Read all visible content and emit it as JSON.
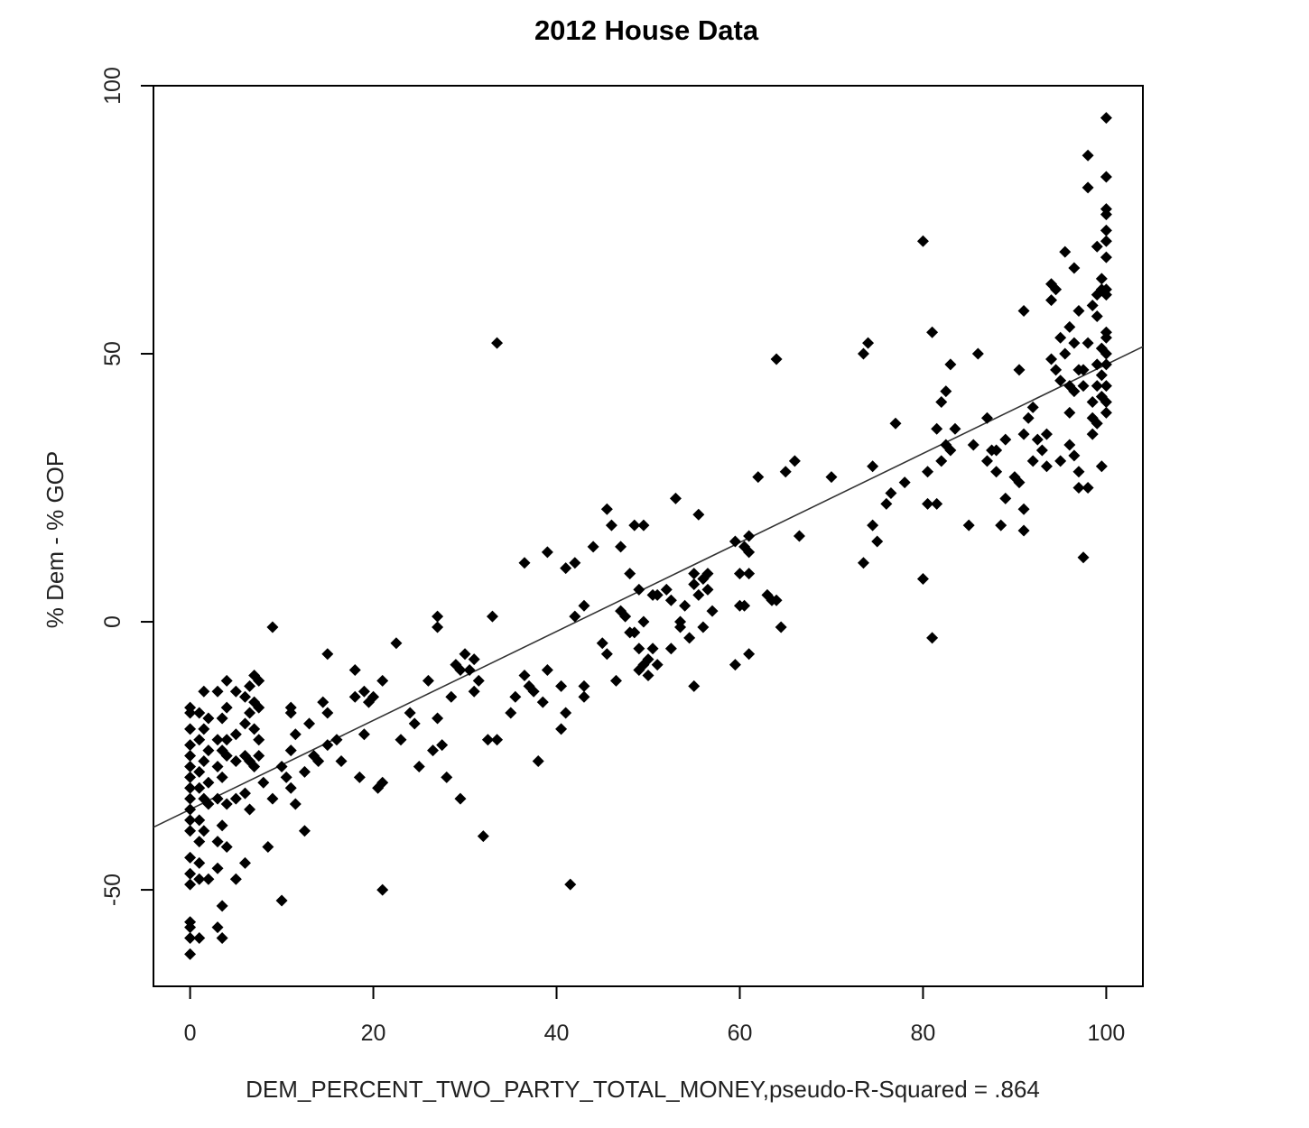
{
  "chart_data": {
    "type": "scatter",
    "title": "2012 House Data",
    "xlabel": "DEM_PERCENT_TWO_PARTY_TOTAL_MONEY,pseudo-R-Squared = .864",
    "ylabel": "% Dem - % GOP",
    "xlim": [
      -4,
      104
    ],
    "ylim": [
      -68,
      100
    ],
    "x_ticks": [
      0,
      20,
      40,
      60,
      80,
      100
    ],
    "x_tick_labels": [
      "0",
      "20",
      "40",
      "60",
      "80",
      "100"
    ],
    "y_ticks": [
      -50,
      0,
      50,
      100
    ],
    "y_tick_labels": [
      "-50",
      "0",
      "50",
      "100"
    ],
    "grid": false,
    "marker": "filled-diamond",
    "point_color": "#000000",
    "fit_line": {
      "intercept": -35,
      "slope": 0.83
    },
    "points": [
      [
        0,
        -16
      ],
      [
        0,
        -17
      ],
      [
        0,
        -20
      ],
      [
        0,
        -23
      ],
      [
        0,
        -25
      ],
      [
        0,
        -27
      ],
      [
        0,
        -29
      ],
      [
        0,
        -31
      ],
      [
        0,
        -33
      ],
      [
        0,
        -35
      ],
      [
        0,
        -37
      ],
      [
        0,
        -39
      ],
      [
        0,
        -44
      ],
      [
        0,
        -47
      ],
      [
        0,
        -49
      ],
      [
        0,
        -56
      ],
      [
        0,
        -57
      ],
      [
        0,
        -59
      ],
      [
        0,
        -62
      ],
      [
        1,
        -17
      ],
      [
        1,
        -22
      ],
      [
        1,
        -28
      ],
      [
        1,
        -31
      ],
      [
        1,
        -37
      ],
      [
        1,
        -41
      ],
      [
        1,
        -45
      ],
      [
        1,
        -48
      ],
      [
        1,
        -59
      ],
      [
        1.5,
        -13
      ],
      [
        1.5,
        -20
      ],
      [
        1.5,
        -26
      ],
      [
        1.5,
        -33
      ],
      [
        1.5,
        -39
      ],
      [
        2,
        -18
      ],
      [
        2,
        -24
      ],
      [
        2,
        -30
      ],
      [
        2,
        -34
      ],
      [
        2,
        -48
      ],
      [
        3,
        -13
      ],
      [
        3,
        -22
      ],
      [
        3,
        -27
      ],
      [
        3,
        -33
      ],
      [
        3,
        -41
      ],
      [
        3,
        -46
      ],
      [
        3,
        -57
      ],
      [
        3.5,
        -18
      ],
      [
        3.5,
        -24
      ],
      [
        3.5,
        -29
      ],
      [
        3.5,
        -38
      ],
      [
        3.5,
        -53
      ],
      [
        3.5,
        -59
      ],
      [
        4,
        -11
      ],
      [
        4,
        -16
      ],
      [
        4,
        -22
      ],
      [
        4,
        -25
      ],
      [
        4,
        -34
      ],
      [
        4,
        -42
      ],
      [
        5,
        -13
      ],
      [
        5,
        -21
      ],
      [
        5,
        -26
      ],
      [
        5,
        -33
      ],
      [
        5,
        -48
      ],
      [
        6,
        -14
      ],
      [
        6,
        -19
      ],
      [
        6,
        -25
      ],
      [
        6,
        -32
      ],
      [
        6,
        -45
      ],
      [
        6.5,
        -12
      ],
      [
        6.5,
        -17
      ],
      [
        6.5,
        -26
      ],
      [
        6.5,
        -35
      ],
      [
        7,
        -10
      ],
      [
        7,
        -15
      ],
      [
        7,
        -20
      ],
      [
        7,
        -27
      ],
      [
        7.5,
        -11
      ],
      [
        7.5,
        -16
      ],
      [
        7.5,
        -22
      ],
      [
        7.5,
        -25
      ],
      [
        8,
        -30
      ],
      [
        8.5,
        -42
      ],
      [
        9,
        -33
      ],
      [
        9,
        -1
      ],
      [
        10,
        -27
      ],
      [
        10,
        -52
      ],
      [
        10.5,
        -29
      ],
      [
        11,
        -16
      ],
      [
        11,
        -17
      ],
      [
        11,
        -24
      ],
      [
        11,
        -31
      ],
      [
        11.5,
        -21
      ],
      [
        11.5,
        -34
      ],
      [
        12.5,
        -28
      ],
      [
        12.5,
        -39
      ],
      [
        13,
        -19
      ],
      [
        13.5,
        -25
      ],
      [
        14,
        -26
      ],
      [
        14.5,
        -15
      ],
      [
        15,
        -6
      ],
      [
        15,
        -17
      ],
      [
        15,
        -23
      ],
      [
        16,
        -22
      ],
      [
        16.5,
        -26
      ],
      [
        18,
        -9
      ],
      [
        18,
        -14
      ],
      [
        18.5,
        -29
      ],
      [
        19,
        -13
      ],
      [
        19,
        -21
      ],
      [
        19.5,
        -15
      ],
      [
        20,
        -14
      ],
      [
        20.5,
        -31
      ],
      [
        21,
        -11
      ],
      [
        21,
        -30
      ],
      [
        21,
        -50
      ],
      [
        22.5,
        -4
      ],
      [
        23,
        -22
      ],
      [
        24,
        -17
      ],
      [
        24.5,
        -19
      ],
      [
        25,
        -27
      ],
      [
        26,
        -11
      ],
      [
        26.5,
        -24
      ],
      [
        27,
        -18
      ],
      [
        27,
        -1
      ],
      [
        27,
        1
      ],
      [
        27.5,
        -23
      ],
      [
        28,
        -29
      ],
      [
        28.5,
        -14
      ],
      [
        29,
        -8
      ],
      [
        29.5,
        -9
      ],
      [
        29.5,
        -33
      ],
      [
        30,
        -6
      ],
      [
        30.5,
        -9
      ],
      [
        31,
        -7
      ],
      [
        31,
        -13
      ],
      [
        31.5,
        -11
      ],
      [
        32,
        -40
      ],
      [
        32.5,
        -22
      ],
      [
        33,
        1
      ],
      [
        33.5,
        52
      ],
      [
        33.5,
        -22
      ],
      [
        35,
        -17
      ],
      [
        35.5,
        -14
      ],
      [
        36.5,
        -10
      ],
      [
        36.5,
        11
      ],
      [
        37,
        -12
      ],
      [
        37.5,
        -13
      ],
      [
        38,
        -26
      ],
      [
        38.5,
        -15
      ],
      [
        39,
        13
      ],
      [
        39,
        -9
      ],
      [
        40.5,
        -12
      ],
      [
        40.5,
        -20
      ],
      [
        41,
        -17
      ],
      [
        41,
        10
      ],
      [
        41.5,
        -49
      ],
      [
        42,
        11
      ],
      [
        42,
        1
      ],
      [
        43,
        -14
      ],
      [
        43,
        -12
      ],
      [
        43,
        3
      ],
      [
        44,
        14
      ],
      [
        45,
        -4
      ],
      [
        45.5,
        -6
      ],
      [
        45.5,
        21
      ],
      [
        46,
        18
      ],
      [
        46.5,
        -11
      ],
      [
        47,
        2
      ],
      [
        47,
        14
      ],
      [
        47.5,
        1
      ],
      [
        48,
        9
      ],
      [
        48,
        -2
      ],
      [
        48.5,
        18
      ],
      [
        48.5,
        -2
      ],
      [
        49,
        -5
      ],
      [
        49,
        6
      ],
      [
        49,
        -9
      ],
      [
        49.5,
        18
      ],
      [
        49.5,
        -8
      ],
      [
        49.5,
        0
      ],
      [
        50,
        -7
      ],
      [
        50,
        -10
      ],
      [
        50.5,
        -5
      ],
      [
        50.5,
        5
      ],
      [
        51,
        -8
      ],
      [
        51,
        5
      ],
      [
        52,
        6
      ],
      [
        52.5,
        4
      ],
      [
        52.5,
        -5
      ],
      [
        53,
        23
      ],
      [
        53.5,
        -1
      ],
      [
        53.5,
        0
      ],
      [
        54,
        3
      ],
      [
        54.5,
        -3
      ],
      [
        55,
        7
      ],
      [
        55,
        9
      ],
      [
        55,
        -12
      ],
      [
        55.5,
        5
      ],
      [
        55.5,
        20
      ],
      [
        56,
        8
      ],
      [
        56,
        -1
      ],
      [
        56.5,
        9
      ],
      [
        56.5,
        6
      ],
      [
        57,
        2
      ],
      [
        59.5,
        15
      ],
      [
        59.5,
        -8
      ],
      [
        60,
        3
      ],
      [
        60,
        9
      ],
      [
        60.5,
        14
      ],
      [
        60.5,
        3
      ],
      [
        61,
        16
      ],
      [
        61,
        9
      ],
      [
        61,
        -6
      ],
      [
        61,
        13
      ],
      [
        62,
        27
      ],
      [
        63,
        5
      ],
      [
        63.5,
        4
      ],
      [
        64,
        49
      ],
      [
        64,
        4
      ],
      [
        64.5,
        -1
      ],
      [
        65,
        28
      ],
      [
        66,
        30
      ],
      [
        66.5,
        16
      ],
      [
        70,
        27
      ],
      [
        73.5,
        50
      ],
      [
        73.5,
        11
      ],
      [
        74,
        52
      ],
      [
        74.5,
        29
      ],
      [
        74.5,
        18
      ],
      [
        75,
        15
      ],
      [
        76,
        22
      ],
      [
        76.5,
        24
      ],
      [
        77,
        37
      ],
      [
        78,
        26
      ],
      [
        80,
        71
      ],
      [
        80,
        8
      ],
      [
        80.5,
        22
      ],
      [
        80.5,
        28
      ],
      [
        81,
        54
      ],
      [
        81,
        -3
      ],
      [
        81.5,
        36
      ],
      [
        81.5,
        22
      ],
      [
        82,
        41
      ],
      [
        82,
        30
      ],
      [
        82.5,
        43
      ],
      [
        82.5,
        33
      ],
      [
        83,
        48
      ],
      [
        83,
        32
      ],
      [
        83.5,
        36
      ],
      [
        85,
        18
      ],
      [
        85.5,
        33
      ],
      [
        86,
        50
      ],
      [
        87,
        38
      ],
      [
        87,
        30
      ],
      [
        87.5,
        32
      ],
      [
        88,
        32
      ],
      [
        88,
        28
      ],
      [
        88.5,
        18
      ],
      [
        89,
        23
      ],
      [
        89,
        34
      ],
      [
        90,
        27
      ],
      [
        90.5,
        47
      ],
      [
        90.5,
        26
      ],
      [
        91,
        58
      ],
      [
        91,
        35
      ],
      [
        91,
        21
      ],
      [
        91,
        17
      ],
      [
        91.5,
        38
      ],
      [
        92,
        30
      ],
      [
        92,
        40
      ],
      [
        92.5,
        34
      ],
      [
        93,
        32
      ],
      [
        93.5,
        35
      ],
      [
        93.5,
        29
      ],
      [
        94,
        60
      ],
      [
        94,
        63
      ],
      [
        94,
        49
      ],
      [
        94.5,
        47
      ],
      [
        94.5,
        62
      ],
      [
        95,
        53
      ],
      [
        95,
        30
      ],
      [
        95,
        45
      ],
      [
        95.5,
        69
      ],
      [
        95.5,
        50
      ],
      [
        96,
        33
      ],
      [
        96,
        39
      ],
      [
        96,
        55
      ],
      [
        96,
        44
      ],
      [
        96.5,
        52
      ],
      [
        96.5,
        43
      ],
      [
        96.5,
        31
      ],
      [
        96.5,
        66
      ],
      [
        97,
        58
      ],
      [
        97,
        47
      ],
      [
        97,
        25
      ],
      [
        97,
        28
      ],
      [
        97.5,
        47
      ],
      [
        97.5,
        44
      ],
      [
        97.5,
        12
      ],
      [
        98,
        87
      ],
      [
        98,
        81
      ],
      [
        98,
        52
      ],
      [
        98,
        25
      ],
      [
        98.5,
        59
      ],
      [
        98.5,
        41
      ],
      [
        98.5,
        35
      ],
      [
        98.5,
        38
      ],
      [
        99,
        70
      ],
      [
        99,
        61
      ],
      [
        99,
        44
      ],
      [
        99,
        48
      ],
      [
        99,
        57
      ],
      [
        99,
        37
      ],
      [
        99.5,
        62
      ],
      [
        99.5,
        51
      ],
      [
        99.5,
        46
      ],
      [
        99.5,
        29
      ],
      [
        99.5,
        64
      ],
      [
        99.5,
        42
      ],
      [
        100,
        94
      ],
      [
        100,
        83
      ],
      [
        100,
        77
      ],
      [
        100,
        76
      ],
      [
        100,
        73
      ],
      [
        100,
        71
      ],
      [
        100,
        68
      ],
      [
        100,
        62
      ],
      [
        100,
        61
      ],
      [
        100,
        54
      ],
      [
        100,
        53
      ],
      [
        100,
        50
      ],
      [
        100,
        48
      ],
      [
        100,
        44
      ],
      [
        100,
        41
      ],
      [
        100,
        39
      ]
    ]
  }
}
